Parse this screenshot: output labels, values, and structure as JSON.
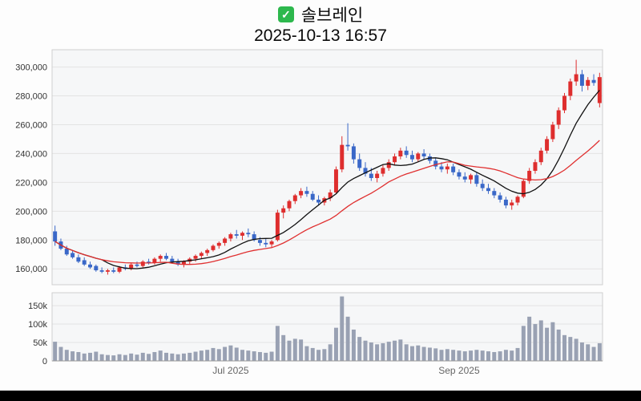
{
  "header": {
    "checkbox_icon": "checkbox-checked",
    "title": "솔브레인",
    "datetime": "2025-10-13 16:57"
  },
  "chart_data": {
    "type": "candlestick",
    "title": "솔브레인",
    "subtitle": "2025-10-13 16:57",
    "legend_position": "none",
    "grid": true,
    "price_axis": {
      "min": 149000,
      "max": 312000,
      "ticks": [
        160000,
        180000,
        200000,
        220000,
        240000,
        260000,
        280000,
        300000
      ]
    },
    "volume_axis": {
      "min": 0,
      "max": 185000,
      "ticks": [
        {
          "v": 0,
          "label": "0"
        },
        {
          "v": 50000,
          "label": "50k"
        },
        {
          "v": 100000,
          "label": "100k"
        },
        {
          "v": 150000,
          "label": "150k"
        }
      ]
    },
    "x_labels": [
      {
        "label": "Jul 2025",
        "index": 30
      },
      {
        "label": "Sep 2025",
        "index": 69
      }
    ],
    "ma_lines": [
      {
        "name": "ma-short",
        "window": 9,
        "color": "#111111"
      },
      {
        "name": "ma-long",
        "window": 20,
        "color": "#e03030"
      }
    ],
    "up_color": "#de2e2e",
    "down_color": "#3a68c8",
    "volume_color": "#99a1b3",
    "grid_color": "#e3e3e3",
    "panel_bg": "#f6f7f8",
    "panel_border": "#cfcfcf",
    "tick_color": "#333333",
    "month_label_color": "#666666",
    "candles": [
      [
        186000,
        190000,
        176000,
        179000,
        52000
      ],
      [
        179000,
        181000,
        173000,
        174000,
        38000
      ],
      [
        174000,
        176000,
        169000,
        170000,
        30000
      ],
      [
        171000,
        173000,
        167000,
        168000,
        26000
      ],
      [
        168000,
        170000,
        164000,
        165000,
        24000
      ],
      [
        166000,
        168000,
        162000,
        163000,
        20000
      ],
      [
        163000,
        165000,
        160000,
        161000,
        22000
      ],
      [
        162000,
        163000,
        158000,
        159000,
        25000
      ],
      [
        159000,
        161000,
        157000,
        158000,
        18000
      ],
      [
        158000,
        160000,
        156000,
        159000,
        16000
      ],
      [
        159000,
        161000,
        157000,
        158000,
        15000
      ],
      [
        158000,
        162000,
        157000,
        161000,
        18000
      ],
      [
        161000,
        163000,
        159000,
        160000,
        16000
      ],
      [
        160000,
        164000,
        159000,
        163000,
        20000
      ],
      [
        163000,
        165000,
        161000,
        162000,
        17000
      ],
      [
        162000,
        166000,
        161000,
        165000,
        22000
      ],
      [
        165000,
        167000,
        163000,
        164000,
        19000
      ],
      [
        164000,
        168000,
        163000,
        167000,
        24000
      ],
      [
        167000,
        170000,
        165000,
        169000,
        28000
      ],
      [
        169000,
        171000,
        166000,
        167000,
        22000
      ],
      [
        167000,
        169000,
        164000,
        165000,
        20000
      ],
      [
        165000,
        167000,
        162000,
        163000,
        18000
      ],
      [
        163000,
        166000,
        161000,
        165000,
        20000
      ],
      [
        165000,
        168000,
        163000,
        167000,
        22000
      ],
      [
        167000,
        170000,
        165000,
        169000,
        25000
      ],
      [
        169000,
        172000,
        167000,
        171000,
        28000
      ],
      [
        171000,
        174000,
        169000,
        173000,
        30000
      ],
      [
        173000,
        177000,
        172000,
        176000,
        35000
      ],
      [
        176000,
        179000,
        174000,
        178000,
        32000
      ],
      [
        178000,
        182000,
        176000,
        181000,
        38000
      ],
      [
        181000,
        185000,
        179000,
        184000,
        42000
      ],
      [
        184000,
        187000,
        181000,
        183000,
        36000
      ],
      [
        183000,
        186000,
        180000,
        185000,
        30000
      ],
      [
        185000,
        188000,
        182000,
        184000,
        28000
      ],
      [
        184000,
        186000,
        179000,
        180000,
        26000
      ],
      [
        180000,
        182000,
        176000,
        178000,
        24000
      ],
      [
        178000,
        181000,
        175000,
        177000,
        22000
      ],
      [
        177000,
        180000,
        175000,
        179000,
        25000
      ],
      [
        180000,
        201000,
        179000,
        199000,
        95000
      ],
      [
        199000,
        204000,
        195000,
        202000,
        70000
      ],
      [
        202000,
        208000,
        200000,
        207000,
        55000
      ],
      [
        207000,
        212000,
        205000,
        211000,
        60000
      ],
      [
        211000,
        216000,
        209000,
        214000,
        58000
      ],
      [
        214000,
        217000,
        210000,
        212000,
        40000
      ],
      [
        212000,
        214000,
        207000,
        208000,
        35000
      ],
      [
        208000,
        211000,
        204000,
        206000,
        30000
      ],
      [
        206000,
        210000,
        204000,
        209000,
        32000
      ],
      [
        209000,
        215000,
        207000,
        213000,
        45000
      ],
      [
        213000,
        231000,
        212000,
        229000,
        90000
      ],
      [
        229000,
        252000,
        227000,
        246000,
        175000
      ],
      [
        246000,
        261000,
        242000,
        245000,
        120000
      ],
      [
        245000,
        247000,
        233000,
        236000,
        85000
      ],
      [
        236000,
        240000,
        228000,
        230000,
        65000
      ],
      [
        230000,
        234000,
        224000,
        226000,
        55000
      ],
      [
        226000,
        230000,
        221000,
        223000,
        50000
      ],
      [
        223000,
        228000,
        220000,
        226000,
        45000
      ],
      [
        226000,
        232000,
        224000,
        230000,
        48000
      ],
      [
        230000,
        236000,
        228000,
        234000,
        52000
      ],
      [
        234000,
        240000,
        232000,
        238000,
        55000
      ],
      [
        238000,
        244000,
        236000,
        242000,
        58000
      ],
      [
        242000,
        245000,
        237000,
        239000,
        45000
      ],
      [
        239000,
        242000,
        234000,
        236000,
        40000
      ],
      [
        236000,
        241000,
        234000,
        240000,
        42000
      ],
      [
        240000,
        243000,
        236000,
        238000,
        38000
      ],
      [
        238000,
        240000,
        233000,
        235000,
        36000
      ],
      [
        235000,
        237000,
        229000,
        231000,
        34000
      ],
      [
        231000,
        234000,
        227000,
        229000,
        30000
      ],
      [
        229000,
        233000,
        226000,
        231000,
        32000
      ],
      [
        231000,
        233000,
        225000,
        227000,
        30000
      ],
      [
        227000,
        229000,
        222000,
        224000,
        28000
      ],
      [
        224000,
        227000,
        220000,
        222000,
        26000
      ],
      [
        222000,
        226000,
        219000,
        225000,
        28000
      ],
      [
        225000,
        227000,
        217000,
        219000,
        30000
      ],
      [
        219000,
        222000,
        214000,
        216000,
        28000
      ],
      [
        216000,
        219000,
        212000,
        214000,
        26000
      ],
      [
        214000,
        216000,
        209000,
        211000,
        24000
      ],
      [
        211000,
        213000,
        206000,
        208000,
        26000
      ],
      [
        208000,
        210000,
        202000,
        204000,
        30000
      ],
      [
        204000,
        208000,
        201000,
        206000,
        28000
      ],
      [
        206000,
        211000,
        204000,
        210000,
        35000
      ],
      [
        210000,
        222000,
        209000,
        221000,
        95000
      ],
      [
        221000,
        230000,
        219000,
        228000,
        120000
      ],
      [
        228000,
        236000,
        226000,
        234000,
        100000
      ],
      [
        234000,
        244000,
        232000,
        242000,
        110000
      ],
      [
        242000,
        252000,
        240000,
        250000,
        90000
      ],
      [
        250000,
        262000,
        248000,
        260000,
        105000
      ],
      [
        260000,
        272000,
        257000,
        270000,
        85000
      ],
      [
        270000,
        282000,
        268000,
        280000,
        70000
      ],
      [
        280000,
        292000,
        277000,
        290000,
        65000
      ],
      [
        290000,
        305000,
        287000,
        295000,
        60000
      ],
      [
        295000,
        298000,
        283000,
        287000,
        50000
      ],
      [
        287000,
        293000,
        284000,
        291000,
        45000
      ],
      [
        291000,
        295000,
        287000,
        289000,
        38000
      ],
      [
        275000,
        296000,
        272000,
        293000,
        48000
      ]
    ]
  }
}
